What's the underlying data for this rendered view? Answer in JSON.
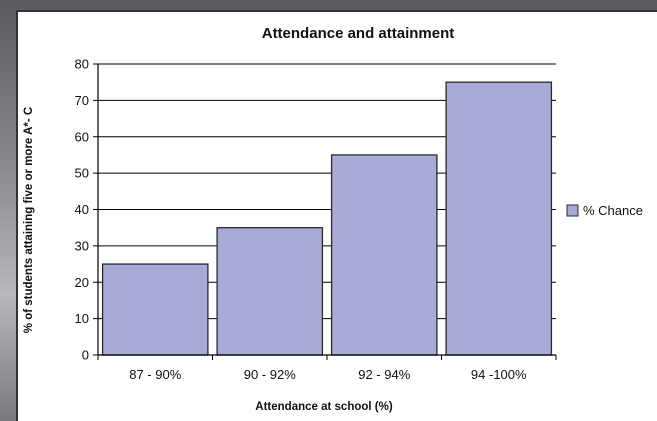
{
  "chart_data": {
    "type": "bar",
    "title": "Attendance and attainment",
    "xlabel": "Attendance at school (%)",
    "ylabel": "% of students attaining five or more A*- C",
    "categories": [
      "87 - 90%",
      "90 - 92%",
      "92 - 94%",
      "94 -100%"
    ],
    "series": [
      {
        "name": "% Chance",
        "values": [
          25,
          35,
          55,
          75
        ]
      }
    ],
    "ylim": [
      0,
      80
    ],
    "yticks": [
      0,
      10,
      20,
      30,
      40,
      50,
      60,
      70,
      80
    ],
    "grid": "horizontal",
    "legend": "right",
    "colors": {
      "bar_fill": "#aaaad6",
      "bar_stroke": "#2a2a2a",
      "gridline": "#000000",
      "axis": "#000000"
    }
  }
}
